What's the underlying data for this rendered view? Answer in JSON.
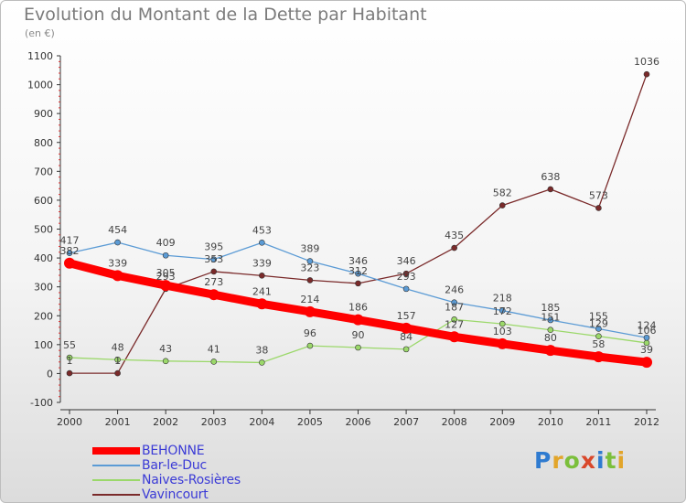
{
  "title": "Evolution du Montant de la Dette par Habitant",
  "subtitle": "(en €)",
  "logo_text": "Proxiti",
  "chart_data": {
    "type": "line",
    "x": [
      2000,
      2001,
      2002,
      2003,
      2004,
      2005,
      2006,
      2007,
      2008,
      2009,
      2010,
      2011,
      2012
    ],
    "ylim": [
      -100,
      1100
    ],
    "yticks": [
      -100,
      0,
      100,
      200,
      300,
      400,
      500,
      600,
      700,
      800,
      900,
      1000,
      1100
    ],
    "grid": false,
    "legend_position": "bottom-left",
    "series": [
      {
        "name": "BEHONNE",
        "color": "#ff0000",
        "values": [
          382,
          339,
          305,
          273,
          241,
          214,
          186,
          157,
          127,
          103,
          80,
          58,
          39
        ]
      },
      {
        "name": "Bar-le-Duc",
        "color": "#5b9bd5",
        "values": [
          417,
          454,
          409,
          395,
          453,
          389,
          346,
          293,
          246,
          218,
          185,
          155,
          124
        ]
      },
      {
        "name": "Naives-Rosières",
        "color": "#9bd86a",
        "values": [
          55,
          48,
          43,
          41,
          38,
          96,
          90,
          84,
          187,
          172,
          151,
          129,
          106
        ]
      },
      {
        "name": "Vavincourt",
        "color": "#7a2a2a",
        "values": [
          1,
          1,
          293,
          353,
          339,
          323,
          312,
          346,
          435,
          582,
          638,
          573,
          1036
        ]
      }
    ]
  }
}
